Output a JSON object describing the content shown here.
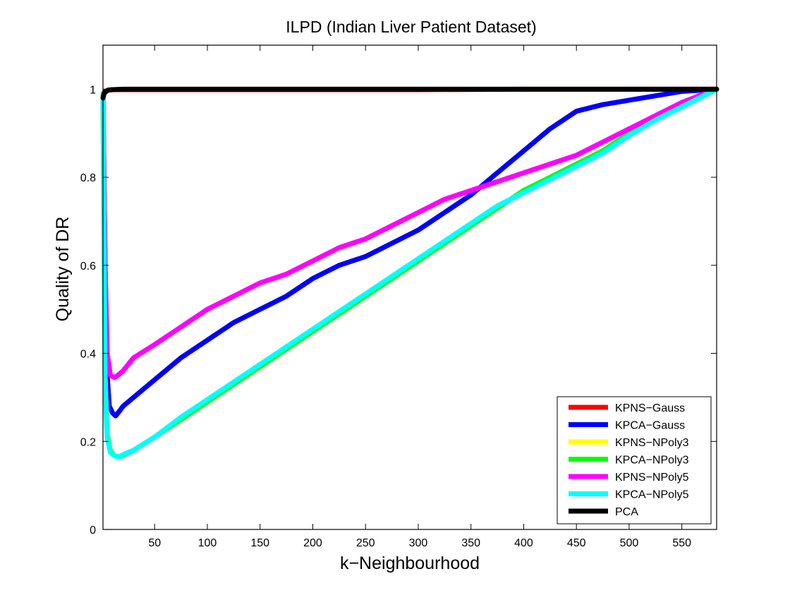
{
  "chart_data": {
    "type": "line",
    "title": "ILPD (Indian Liver Patient Dataset)",
    "xlabel": "k−Neighbourhood",
    "ylabel": "Quality of DR",
    "xlim": [
      1,
      583
    ],
    "ylim": [
      0,
      1.1
    ],
    "xticks": [
      50,
      100,
      150,
      200,
      250,
      300,
      350,
      400,
      450,
      500,
      550
    ],
    "yticks": [
      0,
      0.2,
      0.4,
      0.6,
      0.8,
      1
    ],
    "ytick_labels": [
      "0",
      "0.2",
      "0.4",
      "0.6",
      "0.8",
      "1"
    ],
    "grid": false,
    "legend_position": "bottom-right",
    "series": [
      {
        "name": "KPNS−Gauss",
        "color": "#ff0000",
        "x": [
          1,
          3,
          6,
          10,
          20,
          50,
          100,
          200,
          300,
          400,
          500,
          583
        ],
        "y": [
          0.99,
          0.995,
          0.998,
          0.999,
          0.999,
          0.999,
          0.999,
          0.999,
          0.999,
          1.0,
          1.0,
          1.0
        ]
      },
      {
        "name": "KPCA−Gauss",
        "color": "#0000ff",
        "x": [
          1,
          3,
          5,
          7,
          10,
          13,
          17,
          20,
          30,
          50,
          75,
          100,
          125,
          150,
          175,
          200,
          225,
          250,
          275,
          300,
          325,
          350,
          375,
          400,
          425,
          450,
          475,
          500,
          525,
          550,
          583
        ],
        "y": [
          0.99,
          0.6,
          0.35,
          0.28,
          0.265,
          0.258,
          0.27,
          0.28,
          0.3,
          0.34,
          0.39,
          0.43,
          0.47,
          0.5,
          0.53,
          0.57,
          0.6,
          0.62,
          0.65,
          0.68,
          0.72,
          0.76,
          0.81,
          0.86,
          0.91,
          0.95,
          0.965,
          0.975,
          0.985,
          0.995,
          1.0
        ]
      },
      {
        "name": "KPNS−NPoly3",
        "color": "#ffff00",
        "x": [
          1,
          3,
          5,
          8,
          12,
          17,
          20,
          30,
          50,
          75,
          100,
          125,
          150,
          175,
          200,
          225,
          250,
          275,
          300,
          325,
          350,
          375,
          400,
          425,
          450,
          475,
          500,
          525,
          550,
          583
        ],
        "y": [
          0.99,
          0.35,
          0.22,
          0.18,
          0.168,
          0.165,
          0.168,
          0.18,
          0.21,
          0.25,
          0.29,
          0.33,
          0.37,
          0.41,
          0.45,
          0.49,
          0.53,
          0.57,
          0.61,
          0.65,
          0.69,
          0.73,
          0.77,
          0.8,
          0.83,
          0.86,
          0.9,
          0.93,
          0.96,
          1.0
        ]
      },
      {
        "name": "KPCA−NPoly3",
        "color": "#00ff00",
        "x": [
          1,
          3,
          5,
          8,
          12,
          17,
          20,
          30,
          50,
          75,
          100,
          125,
          150,
          175,
          200,
          225,
          250,
          275,
          300,
          325,
          350,
          375,
          400,
          425,
          450,
          475,
          500,
          525,
          550,
          583
        ],
        "y": [
          0.99,
          0.34,
          0.215,
          0.178,
          0.167,
          0.165,
          0.168,
          0.18,
          0.21,
          0.25,
          0.29,
          0.33,
          0.37,
          0.41,
          0.45,
          0.49,
          0.53,
          0.57,
          0.61,
          0.65,
          0.69,
          0.73,
          0.77,
          0.8,
          0.83,
          0.86,
          0.9,
          0.93,
          0.96,
          1.0
        ]
      },
      {
        "name": "KPNS−NPoly5",
        "color": "#ff00ff",
        "x": [
          1,
          3,
          5,
          8,
          12,
          15,
          20,
          30,
          50,
          75,
          100,
          125,
          150,
          175,
          200,
          225,
          250,
          275,
          300,
          325,
          350,
          375,
          400,
          425,
          450,
          475,
          500,
          525,
          550,
          583
        ],
        "y": [
          0.99,
          0.6,
          0.4,
          0.35,
          0.345,
          0.35,
          0.36,
          0.39,
          0.42,
          0.46,
          0.5,
          0.53,
          0.56,
          0.58,
          0.61,
          0.64,
          0.66,
          0.69,
          0.72,
          0.75,
          0.77,
          0.79,
          0.81,
          0.83,
          0.85,
          0.88,
          0.91,
          0.94,
          0.97,
          1.0
        ]
      },
      {
        "name": "KPCA−NPoly5",
        "color": "#00ffff",
        "x": [
          1,
          3,
          5,
          8,
          12,
          17,
          20,
          30,
          50,
          75,
          100,
          125,
          150,
          175,
          200,
          225,
          250,
          275,
          300,
          325,
          350,
          375,
          400,
          425,
          450,
          475,
          500,
          525,
          550,
          583
        ],
        "y": [
          0.99,
          0.33,
          0.21,
          0.175,
          0.167,
          0.165,
          0.17,
          0.18,
          0.21,
          0.255,
          0.295,
          0.335,
          0.375,
          0.415,
          0.455,
          0.495,
          0.535,
          0.575,
          0.615,
          0.655,
          0.695,
          0.735,
          0.765,
          0.795,
          0.825,
          0.855,
          0.895,
          0.93,
          0.96,
          1.0
        ]
      },
      {
        "name": "PCA",
        "color": "#000000",
        "x": [
          1,
          2,
          4,
          6,
          10,
          20,
          50,
          100,
          200,
          300,
          400,
          500,
          583
        ],
        "y": [
          0.98,
          0.99,
          0.995,
          0.998,
          0.999,
          1.0,
          1.0,
          1.0,
          1.0,
          1.0,
          1.0,
          1.0,
          1.0
        ]
      }
    ]
  }
}
